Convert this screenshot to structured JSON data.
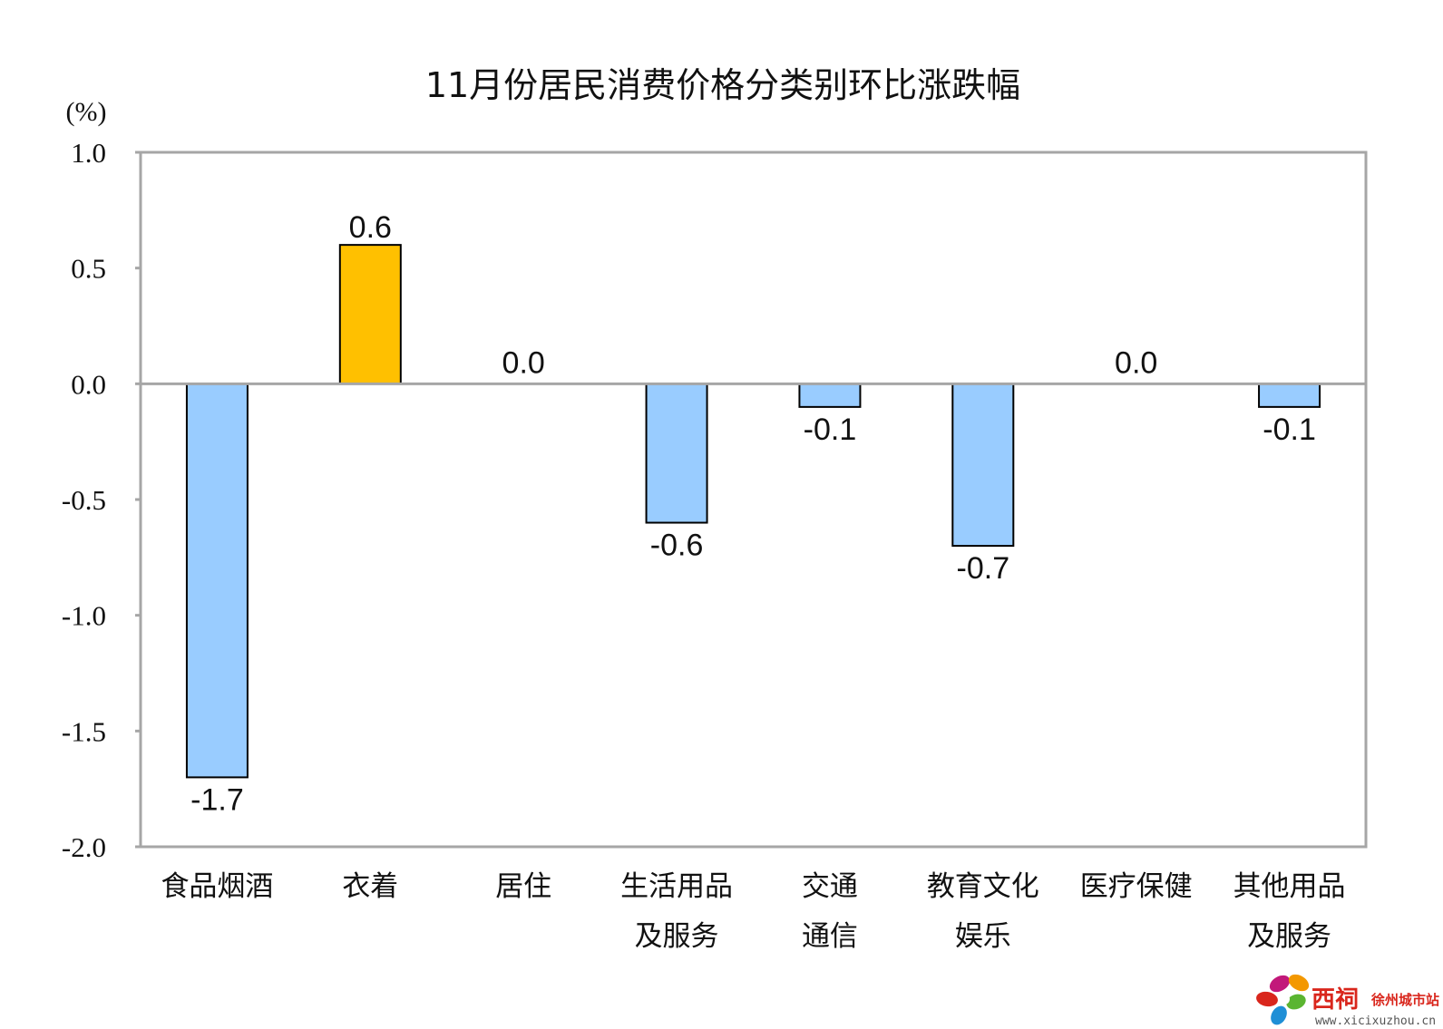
{
  "chart_data": {
    "type": "bar",
    "title": "11月份居民消费价格分类别环比涨跌幅",
    "ylabel": "(%)",
    "xlabel": "",
    "ylim": [
      -2.0,
      1.0
    ],
    "yticks": [
      "1.0",
      "0.5",
      "0.0",
      "-0.5",
      "-1.0",
      "-1.5",
      "-2.0"
    ],
    "ytick_values": [
      1.0,
      0.5,
      0.0,
      -0.5,
      -1.0,
      -1.5,
      -2.0
    ],
    "categories": [
      [
        "食品烟酒"
      ],
      [
        "衣着"
      ],
      [
        "居住"
      ],
      [
        "生活用品",
        "及服务"
      ],
      [
        "交通",
        "通信"
      ],
      [
        "教育文化",
        "娱乐"
      ],
      [
        "医疗保健"
      ],
      [
        "其他用品",
        "及服务"
      ]
    ],
    "values": [
      -1.7,
      0.6,
      0.0,
      -0.6,
      -0.1,
      -0.7,
      0.0,
      -0.1
    ],
    "value_labels": [
      "-1.7",
      "0.6",
      "0.0",
      "-0.6",
      "-0.1",
      "-0.7",
      "0.0",
      "-0.1"
    ],
    "colors": {
      "positive": "#ffc000",
      "negative": "#99ccff",
      "stroke": "#000000",
      "frame": "#a6a6a6"
    },
    "grid": false
  },
  "watermark": {
    "brand": "西祠",
    "site": "徐州城市站",
    "url": "www.xicixuzhou.cn",
    "colors": {
      "red": "#d9261c",
      "orange": "#f39800",
      "green": "#5bb531",
      "blue": "#1f8fd6",
      "magenta": "#c2187a"
    }
  }
}
